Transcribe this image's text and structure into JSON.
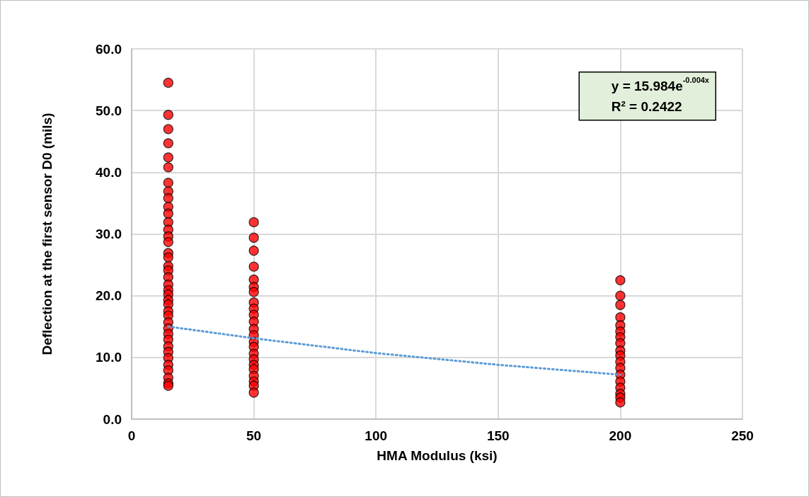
{
  "chart_data": {
    "type": "scatter",
    "xlabel": "HMA Modulus (ksi)",
    "ylabel": "Deflection at the first sensor D0 (mils)",
    "xlim": [
      0,
      250
    ],
    "xticks": [
      0,
      50,
      100,
      150,
      200,
      250
    ],
    "ylim": [
      0,
      60
    ],
    "yticks": [
      {
        "value": 0,
        "label": "0.0"
      },
      {
        "value": 10,
        "label": "10.0"
      },
      {
        "value": 20,
        "label": "20.0"
      },
      {
        "value": 30,
        "label": "30.0"
      },
      {
        "value": 40,
        "label": "40.0"
      },
      {
        "value": 50,
        "label": "50.0"
      },
      {
        "value": 60,
        "label": "60.0"
      }
    ],
    "grid": true,
    "marker": "circle",
    "annotations": [
      "y = 15.984e$^{-0.004x}$",
      "R² = 0.2422"
    ],
    "series": [
      {
        "color": "#ff0000",
        "x": [
          15,
          15,
          15,
          15,
          15,
          15,
          15,
          15,
          15,
          15,
          15,
          15,
          15,
          15,
          15,
          15,
          15,
          15,
          15,
          15,
          15,
          15,
          15,
          15,
          15,
          15,
          15,
          15,
          15,
          15,
          15,
          15,
          15,
          15,
          15,
          15,
          15,
          15,
          15
        ],
        "values": [
          54.5,
          49.3,
          47.0,
          44.7,
          42.4,
          40.8,
          38.3,
          36.9,
          35.8,
          34.4,
          33.3,
          31.9,
          30.7,
          29.6,
          28.7,
          26.9,
          26.2,
          24.8,
          24.1,
          23.0,
          21.8,
          20.9,
          20.2,
          19.3,
          18.6,
          17.5,
          16.8,
          15.7,
          14.7,
          13.8,
          12.9,
          11.8,
          10.9,
          9.9,
          8.8,
          7.9,
          6.7,
          5.8,
          5.4
        ]
      },
      {
        "color": "#ff0000",
        "x": [
          50,
          50,
          50,
          50,
          50,
          50,
          50,
          50,
          50,
          50,
          50,
          50,
          50,
          50,
          50,
          50,
          50,
          50,
          50,
          50,
          50,
          50,
          50
        ],
        "values": [
          31.9,
          29.4,
          27.3,
          24.7,
          22.6,
          21.4,
          20.6,
          18.9,
          17.9,
          16.9,
          15.8,
          14.6,
          13.6,
          12.5,
          11.7,
          10.6,
          9.7,
          8.8,
          8.1,
          7.0,
          6.1,
          5.4,
          4.3
        ]
      },
      {
        "color": "#ff0000",
        "x": [
          200,
          200,
          200,
          200,
          200,
          200,
          200,
          200,
          200,
          200,
          200,
          200,
          200,
          200,
          200,
          200,
          200,
          200
        ],
        "values": [
          22.5,
          20.0,
          18.5,
          16.5,
          15.2,
          14.2,
          13.3,
          12.3,
          11.1,
          10.3,
          9.3,
          8.3,
          7.2,
          6.1,
          5.1,
          4.1,
          3.5,
          2.7
        ]
      },
      {
        "type": "line",
        "color": "#5b9bd5",
        "line_style": "dotted",
        "marker": "none",
        "x": [
          15,
          50,
          100,
          150,
          200
        ],
        "values": [
          15.0,
          13.1,
          10.7,
          8.8,
          7.2
        ]
      }
    ]
  }
}
